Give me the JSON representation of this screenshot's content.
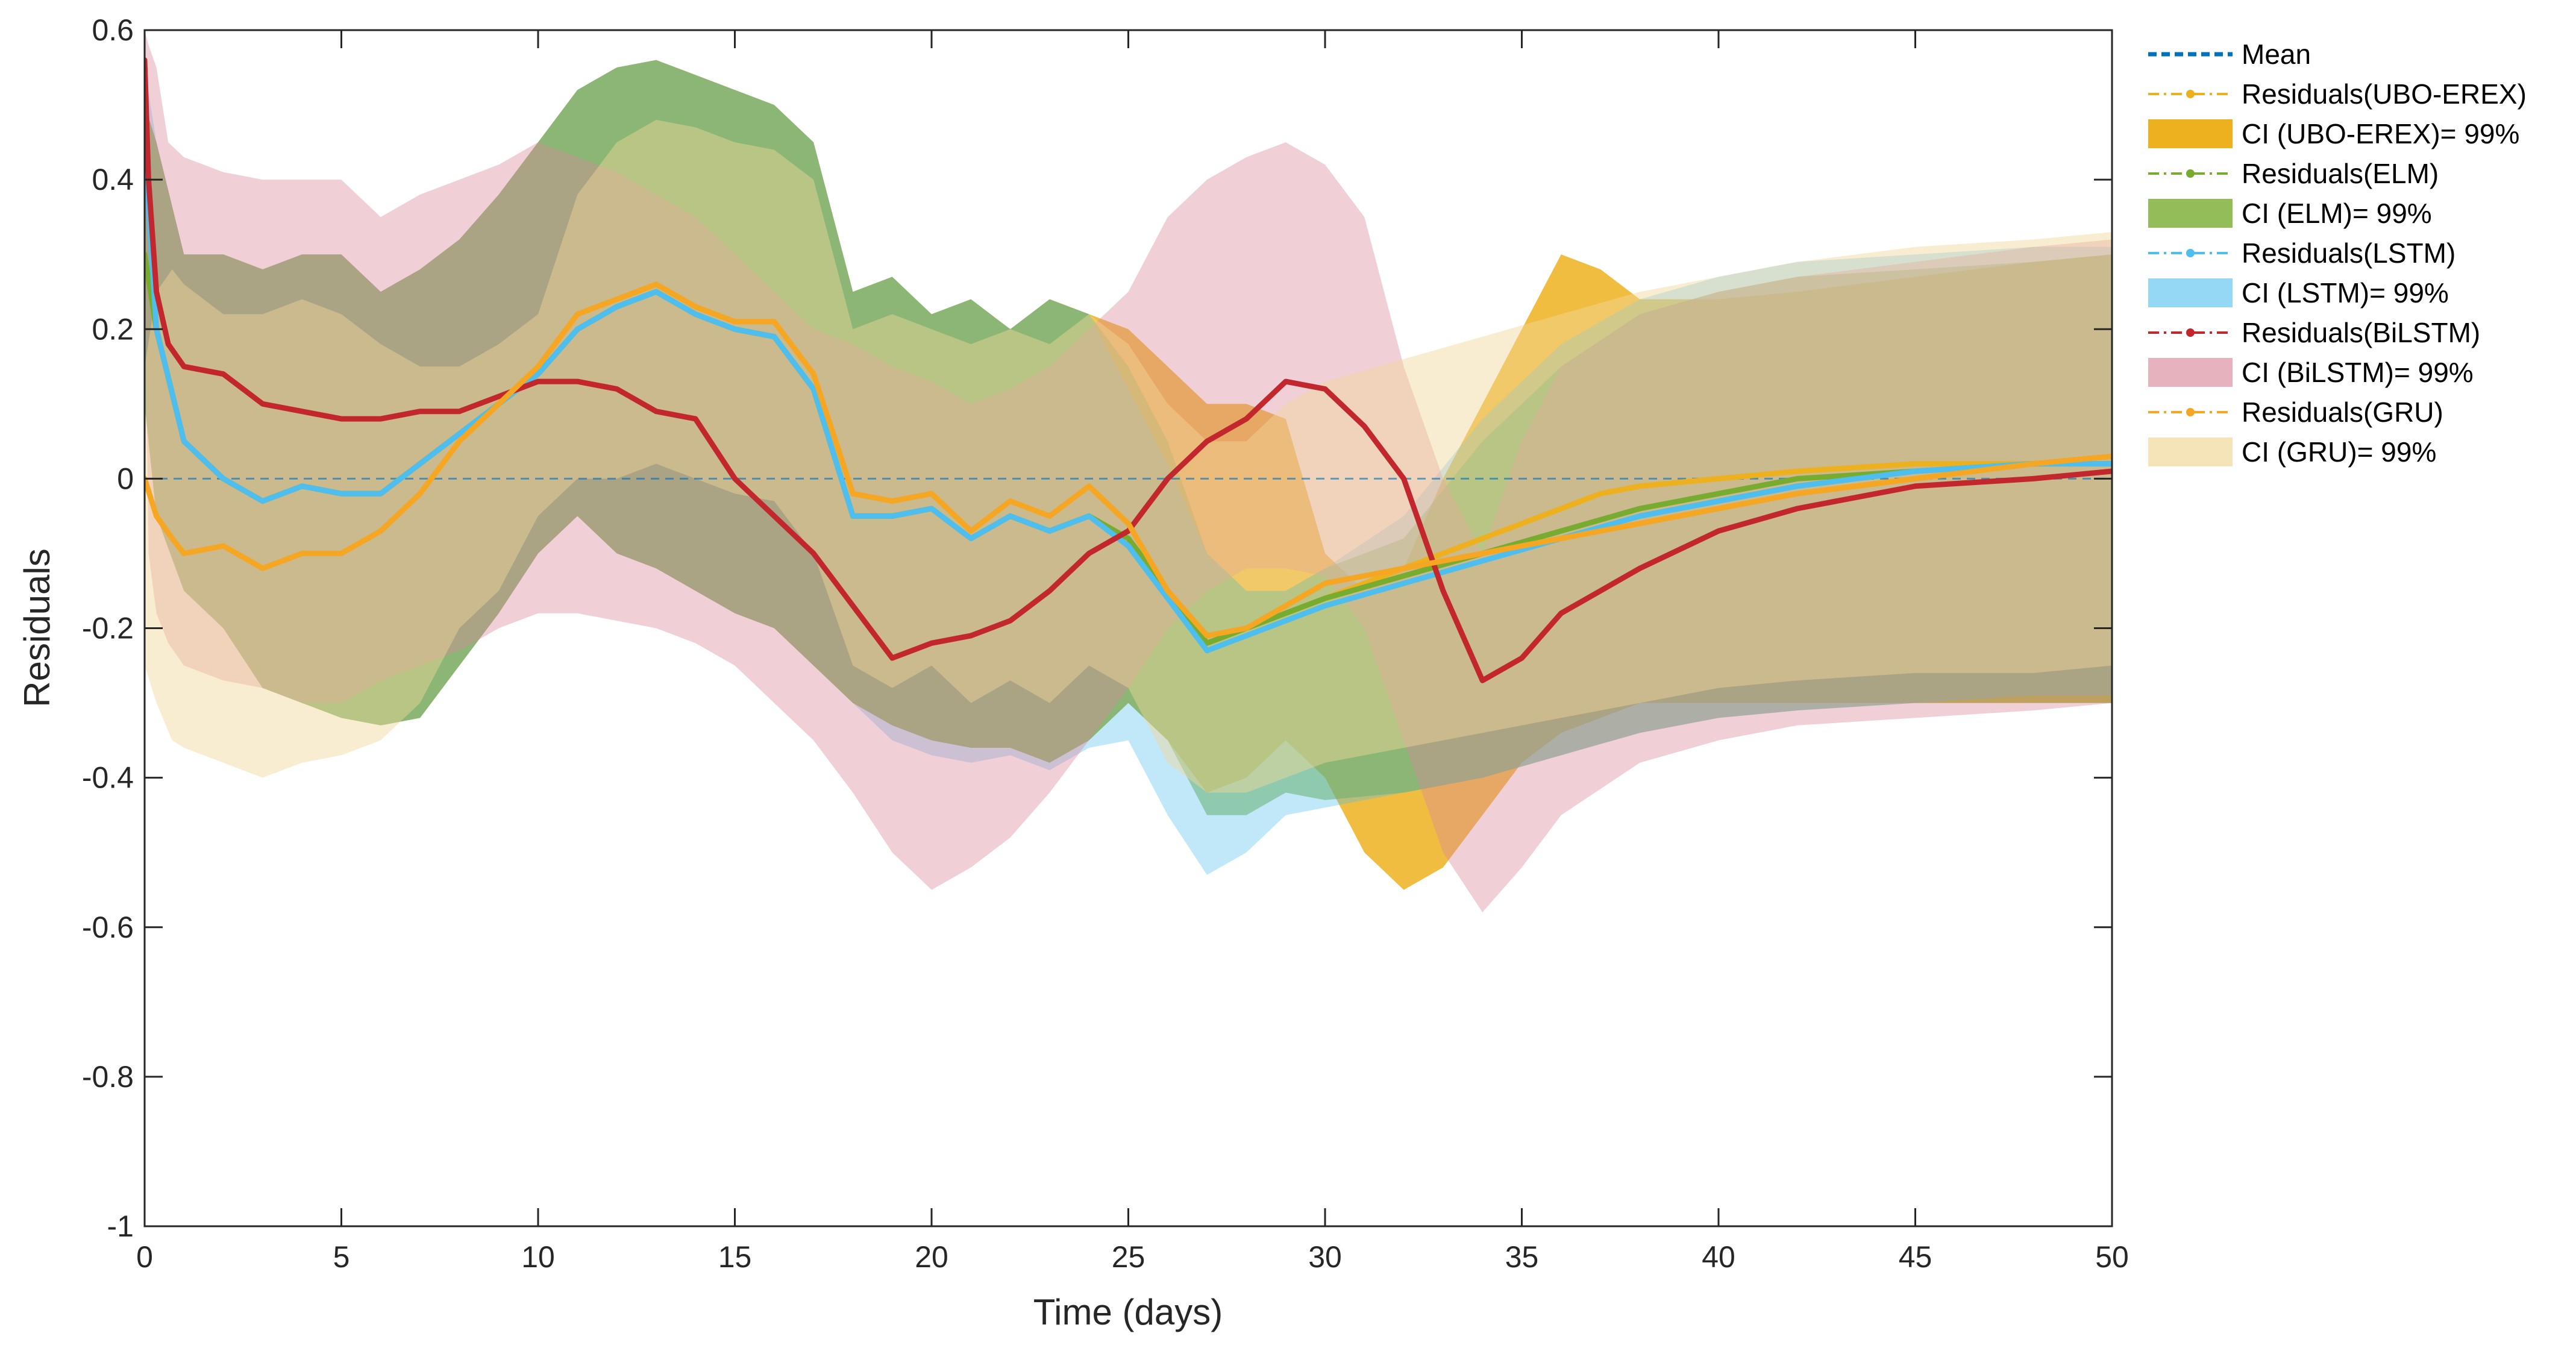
{
  "chart_data": {
    "type": "line",
    "title": "",
    "xlabel": "Time (days)",
    "ylabel": "Residuals",
    "xlim": [
      0,
      50
    ],
    "ylim": [
      -1,
      0.6
    ],
    "xticks": [
      0,
      5,
      10,
      15,
      20,
      25,
      30,
      35,
      40,
      45,
      50
    ],
    "yticks": [
      0.6,
      0.4,
      0.2,
      0,
      -0.2,
      -0.4,
      -0.6,
      -0.8,
      -1
    ],
    "ytick_labels": [
      "0.6",
      "0.4",
      "0.2",
      "0",
      "-0.2",
      "-0.4",
      "-0.6",
      "-0.8",
      "-1"
    ],
    "grid": false,
    "legend_position": "right-outside",
    "legend": [
      "Mean",
      "Residuals(UBO-EREX)",
      "CI (UBO-EREX)= 99%",
      "Residuals(ELM)",
      "CI (ELM)= 99%",
      "Residuals(LSTM)",
      "CI (LSTM)= 99%",
      "Residuals(BiLSTM)",
      "CI (BiLSTM)= 99%",
      "Residuals(GRU)",
      "CI (GRU)= 99%"
    ],
    "mean": {
      "name": "Mean",
      "color": "#0072BD",
      "x": [
        0,
        50
      ],
      "y": [
        0,
        0
      ]
    },
    "series": [
      {
        "name": "Residuals(UBO-EREX)",
        "ci_name": "CI (UBO-EREX)= 99%",
        "color": "#EDB120",
        "fill": "#EDB120",
        "fill_opacity": 0.85,
        "x": [
          0,
          0.3,
          1,
          2,
          3,
          4,
          5,
          6,
          7,
          8,
          9,
          10,
          11,
          12,
          13,
          14,
          15,
          16,
          17,
          18,
          19,
          20,
          21,
          22,
          23,
          24,
          25,
          26,
          27,
          28,
          29,
          30,
          31,
          32,
          33,
          34,
          35,
          36,
          37,
          38,
          40,
          42,
          45,
          48,
          50
        ],
        "y": [
          0.3,
          0.2,
          0.05,
          0.0,
          -0.03,
          -0.01,
          -0.02,
          -0.02,
          0.02,
          0.06,
          0.1,
          0.14,
          0.2,
          0.23,
          0.25,
          0.22,
          0.2,
          0.19,
          0.12,
          -0.05,
          -0.05,
          -0.04,
          -0.08,
          -0.05,
          -0.07,
          -0.05,
          -0.08,
          -0.15,
          -0.22,
          -0.2,
          -0.18,
          -0.16,
          -0.14,
          -0.12,
          -0.1,
          -0.08,
          -0.06,
          -0.04,
          -0.02,
          -0.01,
          0.0,
          0.01,
          0.02,
          0.02,
          0.02
        ],
        "upper": [
          0.5,
          0.45,
          0.3,
          0.3,
          0.28,
          0.3,
          0.3,
          0.25,
          0.28,
          0.32,
          0.38,
          0.45,
          0.52,
          0.55,
          0.56,
          0.54,
          0.52,
          0.5,
          0.45,
          0.25,
          0.27,
          0.22,
          0.24,
          0.2,
          0.24,
          0.22,
          0.2,
          0.15,
          0.1,
          0.1,
          0.08,
          -0.1,
          -0.15,
          -0.12,
          0.0,
          0.1,
          0.2,
          0.3,
          0.28,
          0.24,
          0.24,
          0.25,
          0.27,
          0.29,
          0.3
        ],
        "lower": [
          0.1,
          -0.05,
          -0.15,
          -0.2,
          -0.28,
          -0.3,
          -0.32,
          -0.33,
          -0.32,
          -0.25,
          -0.18,
          -0.1,
          -0.05,
          -0.1,
          -0.12,
          -0.15,
          -0.18,
          -0.2,
          -0.25,
          -0.3,
          -0.33,
          -0.35,
          -0.36,
          -0.36,
          -0.38,
          -0.35,
          -0.3,
          -0.35,
          -0.42,
          -0.4,
          -0.35,
          -0.4,
          -0.5,
          -0.55,
          -0.52,
          -0.45,
          -0.38,
          -0.34,
          -0.32,
          -0.3,
          -0.3,
          -0.3,
          -0.3,
          -0.3,
          -0.3
        ]
      },
      {
        "name": "Residuals(ELM)",
        "ci_name": "CI (ELM)= 99%",
        "color": "#77AC30",
        "fill": "#77AC30",
        "fill_opacity": 0.55,
        "x": [
          0,
          0.3,
          1,
          2,
          3,
          4,
          5,
          6,
          7,
          8,
          9,
          10,
          11,
          12,
          13,
          14,
          15,
          16,
          17,
          18,
          19,
          20,
          21,
          22,
          23,
          24,
          25,
          26,
          27,
          28,
          29,
          30,
          32,
          34,
          36,
          38,
          40,
          42,
          45,
          48,
          50
        ],
        "y": [
          0.3,
          0.2,
          0.05,
          0.0,
          -0.03,
          -0.01,
          -0.02,
          -0.02,
          0.02,
          0.06,
          0.1,
          0.14,
          0.2,
          0.23,
          0.25,
          0.22,
          0.2,
          0.19,
          0.12,
          -0.05,
          -0.05,
          -0.04,
          -0.08,
          -0.05,
          -0.07,
          -0.05,
          -0.08,
          -0.15,
          -0.22,
          -0.2,
          -0.18,
          -0.16,
          -0.13,
          -0.1,
          -0.07,
          -0.04,
          -0.02,
          0.0,
          0.01,
          0.02,
          0.02
        ],
        "upper": [
          0.5,
          0.45,
          0.3,
          0.3,
          0.28,
          0.3,
          0.3,
          0.25,
          0.28,
          0.32,
          0.38,
          0.45,
          0.52,
          0.55,
          0.56,
          0.54,
          0.52,
          0.5,
          0.45,
          0.25,
          0.27,
          0.22,
          0.24,
          0.2,
          0.24,
          0.22,
          0.15,
          0.05,
          -0.1,
          -0.15,
          -0.15,
          -0.12,
          -0.08,
          0.05,
          0.15,
          0.22,
          0.25,
          0.27,
          0.28,
          0.29,
          0.3
        ],
        "lower": [
          0.1,
          -0.05,
          -0.15,
          -0.2,
          -0.28,
          -0.3,
          -0.32,
          -0.33,
          -0.32,
          -0.25,
          -0.18,
          -0.1,
          -0.05,
          -0.1,
          -0.12,
          -0.15,
          -0.18,
          -0.2,
          -0.25,
          -0.3,
          -0.33,
          -0.35,
          -0.36,
          -0.36,
          -0.38,
          -0.35,
          -0.3,
          -0.35,
          -0.45,
          -0.45,
          -0.42,
          -0.43,
          -0.42,
          -0.4,
          -0.37,
          -0.34,
          -0.32,
          -0.31,
          -0.3,
          -0.3,
          -0.3
        ]
      },
      {
        "name": "Residuals(LSTM)",
        "ci_name": "CI (LSTM)= 99%",
        "color": "#4DBEEE",
        "fill": "#4DBEEE",
        "fill_opacity": 0.35,
        "x": [
          0,
          0.3,
          1,
          2,
          3,
          4,
          5,
          6,
          7,
          8,
          9,
          10,
          11,
          12,
          13,
          14,
          15,
          16,
          17,
          18,
          19,
          20,
          21,
          22,
          23,
          24,
          25,
          26,
          27,
          28,
          29,
          30,
          32,
          34,
          36,
          38,
          40,
          42,
          45,
          48,
          50
        ],
        "y": [
          0.45,
          0.2,
          0.05,
          0.0,
          -0.03,
          -0.01,
          -0.02,
          -0.02,
          0.02,
          0.06,
          0.1,
          0.14,
          0.2,
          0.23,
          0.25,
          0.22,
          0.2,
          0.19,
          0.12,
          -0.05,
          -0.05,
          -0.04,
          -0.08,
          -0.05,
          -0.07,
          -0.05,
          -0.09,
          -0.16,
          -0.23,
          -0.21,
          -0.19,
          -0.17,
          -0.14,
          -0.11,
          -0.08,
          -0.05,
          -0.03,
          -0.01,
          0.01,
          0.02,
          0.02
        ],
        "upper": [
          0.55,
          0.45,
          0.3,
          0.3,
          0.28,
          0.3,
          0.3,
          0.25,
          0.28,
          0.32,
          0.38,
          0.45,
          0.52,
          0.55,
          0.56,
          0.54,
          0.52,
          0.5,
          0.45,
          0.25,
          0.27,
          0.22,
          0.24,
          0.2,
          0.24,
          0.22,
          0.12,
          0.02,
          -0.1,
          -0.15,
          -0.15,
          -0.12,
          -0.05,
          0.08,
          0.18,
          0.24,
          0.27,
          0.29,
          0.3,
          0.31,
          0.31
        ],
        "lower": [
          0.1,
          -0.05,
          -0.15,
          -0.2,
          -0.28,
          -0.3,
          -0.32,
          -0.33,
          -0.32,
          -0.25,
          -0.18,
          -0.1,
          -0.05,
          -0.1,
          -0.12,
          -0.15,
          -0.18,
          -0.2,
          -0.25,
          -0.3,
          -0.35,
          -0.37,
          -0.38,
          -0.37,
          -0.39,
          -0.36,
          -0.35,
          -0.45,
          -0.53,
          -0.5,
          -0.45,
          -0.44,
          -0.42,
          -0.4,
          -0.37,
          -0.34,
          -0.32,
          -0.31,
          -0.3,
          -0.29,
          -0.29
        ]
      },
      {
        "name": "Residuals(BiLSTM)",
        "ci_name": "CI (BiLSTM)= 99%",
        "color": "#C1272D",
        "fill": "#D9889A",
        "fill_opacity": 0.4,
        "x": [
          0,
          0.1,
          0.3,
          0.6,
          1,
          2,
          3,
          4,
          5,
          6,
          7,
          8,
          9,
          10,
          11,
          12,
          13,
          14,
          15,
          16,
          17,
          18,
          19,
          20,
          21,
          22,
          23,
          24,
          25,
          26,
          27,
          28,
          29,
          30,
          31,
          32,
          33,
          34,
          35,
          36,
          38,
          40,
          42,
          45,
          48,
          50
        ],
        "y": [
          0.56,
          0.4,
          0.25,
          0.18,
          0.15,
          0.14,
          0.1,
          0.09,
          0.08,
          0.08,
          0.09,
          0.09,
          0.11,
          0.13,
          0.13,
          0.12,
          0.09,
          0.08,
          0.0,
          -0.05,
          -0.1,
          -0.17,
          -0.24,
          -0.22,
          -0.21,
          -0.19,
          -0.15,
          -0.1,
          -0.07,
          0.0,
          0.05,
          0.08,
          0.13,
          0.12,
          0.07,
          0.0,
          -0.15,
          -0.27,
          -0.24,
          -0.18,
          -0.12,
          -0.07,
          -0.04,
          -0.01,
          0.0,
          0.01
        ],
        "upper": [
          0.6,
          0.58,
          0.55,
          0.45,
          0.43,
          0.41,
          0.4,
          0.4,
          0.4,
          0.35,
          0.38,
          0.4,
          0.42,
          0.45,
          0.43,
          0.41,
          0.38,
          0.35,
          0.3,
          0.25,
          0.2,
          0.18,
          0.15,
          0.13,
          0.1,
          0.12,
          0.15,
          0.2,
          0.25,
          0.35,
          0.4,
          0.43,
          0.45,
          0.42,
          0.35,
          0.15,
          0.0,
          -0.1,
          0.05,
          0.15,
          0.22,
          0.25,
          0.27,
          0.29,
          0.31,
          0.32
        ],
        "lower": [
          0.3,
          -0.1,
          -0.18,
          -0.22,
          -0.25,
          -0.27,
          -0.28,
          -0.3,
          -0.3,
          -0.27,
          -0.25,
          -0.23,
          -0.2,
          -0.18,
          -0.18,
          -0.19,
          -0.2,
          -0.22,
          -0.25,
          -0.3,
          -0.35,
          -0.42,
          -0.5,
          -0.55,
          -0.52,
          -0.48,
          -0.42,
          -0.35,
          -0.28,
          -0.2,
          -0.15,
          -0.12,
          -0.12,
          -0.13,
          -0.2,
          -0.35,
          -0.5,
          -0.58,
          -0.52,
          -0.45,
          -0.38,
          -0.35,
          -0.33,
          -0.32,
          -0.31,
          -0.3
        ]
      },
      {
        "name": "Residuals(GRU)",
        "ci_name": "CI (GRU)= 99%",
        "color": "#F5A623",
        "fill": "#F1D89A",
        "fill_opacity": 0.45,
        "x": [
          0,
          0.3,
          0.7,
          1,
          2,
          3,
          4,
          5,
          6,
          7,
          8,
          9,
          10,
          11,
          12,
          13,
          14,
          15,
          16,
          17,
          18,
          19,
          20,
          21,
          22,
          23,
          24,
          25,
          26,
          27,
          28,
          29,
          30,
          32,
          34,
          36,
          38,
          40,
          42,
          45,
          48,
          50
        ],
        "y": [
          0.0,
          -0.05,
          -0.08,
          -0.1,
          -0.09,
          -0.12,
          -0.1,
          -0.1,
          -0.07,
          -0.02,
          0.05,
          0.1,
          0.15,
          0.22,
          0.24,
          0.26,
          0.23,
          0.21,
          0.21,
          0.14,
          -0.02,
          -0.03,
          -0.02,
          -0.07,
          -0.03,
          -0.05,
          -0.01,
          -0.06,
          -0.15,
          -0.21,
          -0.2,
          -0.17,
          -0.14,
          -0.12,
          -0.1,
          -0.08,
          -0.06,
          -0.04,
          -0.02,
          0.0,
          0.02,
          0.03
        ],
        "upper": [
          0.15,
          0.25,
          0.28,
          0.26,
          0.22,
          0.22,
          0.24,
          0.22,
          0.18,
          0.15,
          0.15,
          0.18,
          0.22,
          0.38,
          0.45,
          0.48,
          0.47,
          0.45,
          0.44,
          0.4,
          0.2,
          0.22,
          0.2,
          0.18,
          0.2,
          0.18,
          0.22,
          0.18,
          0.1,
          0.05,
          0.05,
          0.1,
          0.13,
          0.16,
          0.19,
          0.22,
          0.25,
          0.27,
          0.29,
          0.31,
          0.32,
          0.33
        ],
        "lower": [
          -0.25,
          -0.3,
          -0.35,
          -0.36,
          -0.38,
          -0.4,
          -0.38,
          -0.37,
          -0.35,
          -0.3,
          -0.2,
          -0.15,
          -0.05,
          0.0,
          0.0,
          0.02,
          0.0,
          -0.02,
          -0.03,
          -0.1,
          -0.25,
          -0.28,
          -0.25,
          -0.3,
          -0.27,
          -0.3,
          -0.25,
          -0.28,
          -0.38,
          -0.42,
          -0.42,
          -0.4,
          -0.38,
          -0.36,
          -0.34,
          -0.32,
          -0.3,
          -0.28,
          -0.27,
          -0.26,
          -0.26,
          -0.25
        ]
      }
    ]
  }
}
